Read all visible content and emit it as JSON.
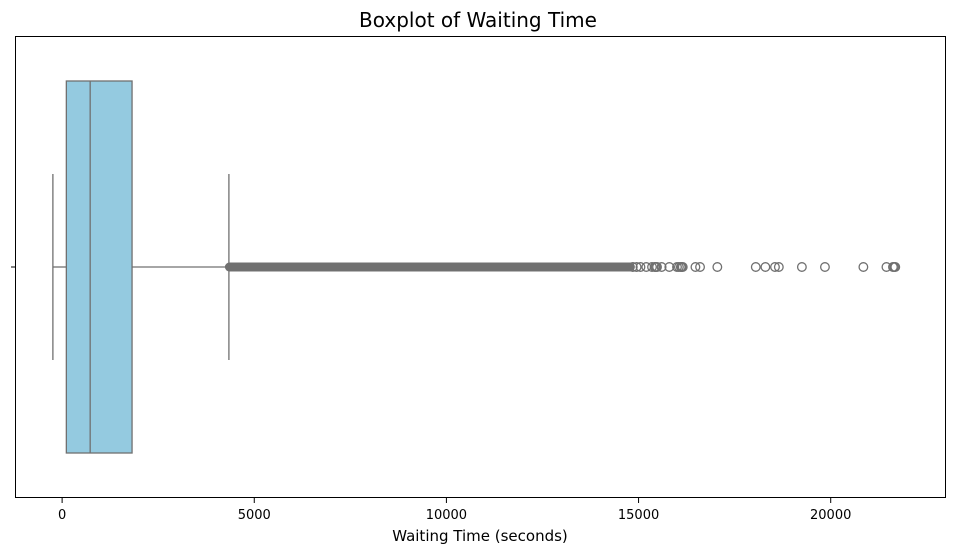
{
  "chart_data": {
    "type": "boxplot",
    "title": "Boxplot of Waiting Time",
    "xlabel": "Waiting Time (seconds)",
    "ylabel": "",
    "xlim": [
      -1200,
      23000
    ],
    "xticks": [
      0,
      5000,
      10000,
      15000,
      20000
    ],
    "xtick_labels": [
      "0",
      "5000",
      "10000",
      "15000",
      "20000"
    ],
    "grid": false,
    "box": {
      "whisker_low": -240,
      "q1": 110,
      "median": 730,
      "q3": 1820,
      "whisker_high": 4340
    },
    "dense_outlier_range": [
      4340,
      14800
    ],
    "outliers": [
      14850,
      14950,
      15050,
      15200,
      15350,
      15420,
      15450,
      15480,
      15600,
      15800,
      16000,
      16050,
      16100,
      16120,
      16150,
      16480,
      16600,
      17050,
      18050,
      18300,
      18550,
      18650,
      19250,
      19850,
      20850,
      21450,
      21620,
      21650,
      21680
    ],
    "colors": {
      "box_fill": "#94cae0",
      "line": "#707070",
      "outlier_edge": "#707070",
      "frame": "#000000"
    }
  }
}
